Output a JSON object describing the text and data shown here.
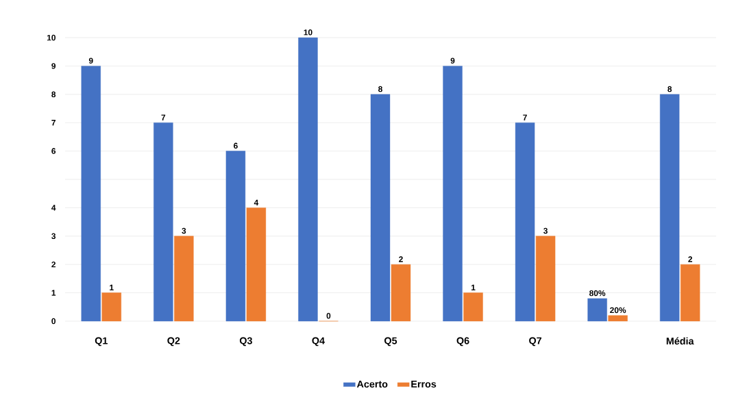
{
  "chart_data": {
    "type": "bar",
    "categories": [
      "Q1",
      "Q2",
      "Q3",
      "Q4",
      "Q5",
      "Q6",
      "Q7",
      null,
      "Média"
    ],
    "series": [
      {
        "name": "Acerto",
        "color": "#4472c4",
        "values": [
          9,
          7,
          6,
          10,
          8,
          9,
          7,
          0.8,
          8
        ],
        "value_labels": [
          "9",
          "7",
          "6",
          "10",
          "8",
          "9",
          "7",
          "80%",
          "8"
        ]
      },
      {
        "name": "Erros",
        "color": "#ed7d31",
        "values": [
          1,
          3,
          4,
          0,
          2,
          1,
          3,
          0.2,
          2
        ],
        "value_labels": [
          "1",
          "3",
          "4",
          "0",
          "2",
          "1",
          "3",
          "20%",
          "2"
        ]
      }
    ],
    "ylim": [
      0,
      10
    ],
    "yticks": [
      0,
      1,
      2,
      3,
      4,
      {
        "value": 5,
        "label": null
      },
      6,
      7,
      8,
      9,
      10
    ],
    "grid": "y",
    "legend": "bottom"
  }
}
